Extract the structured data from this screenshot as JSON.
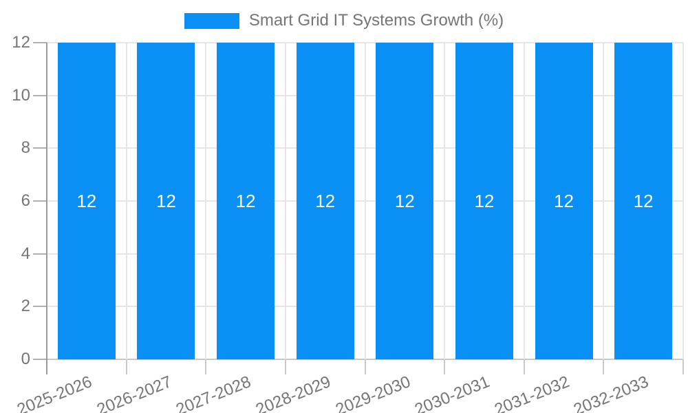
{
  "legend": {
    "label": "Smart Grid IT Systems Growth (%)"
  },
  "chart_data": {
    "type": "bar",
    "title": "Smart Grid IT Systems Growth (%)",
    "categories": [
      "2025-2026",
      "2026-2027",
      "2027-2028",
      "2028-2029",
      "2029-2030",
      "2030-2031",
      "2031-2032",
      "2032-2033"
    ],
    "values": [
      12,
      12,
      12,
      12,
      12,
      12,
      12,
      12
    ],
    "data_labels": [
      "12",
      "12",
      "12",
      "12",
      "12",
      "12",
      "12",
      "12"
    ],
    "xlabel": "",
    "ylabel": "",
    "ylim": [
      0,
      12
    ],
    "yticks": [
      0,
      2,
      4,
      6,
      8,
      10,
      12
    ],
    "ytick_labels": [
      "0",
      "2",
      "4",
      "6",
      "8",
      "10",
      "12"
    ],
    "grid": "on",
    "legend_position": "top-center",
    "colors": {
      "bar": "#0a8ff5",
      "bar_label": "#ffffff",
      "axis_text": "#757575",
      "axis_line": "#9a9a9a",
      "gridline": "#e6e6e6",
      "baseline": "#c9c9c9",
      "tick": "#b0b0b0"
    }
  }
}
